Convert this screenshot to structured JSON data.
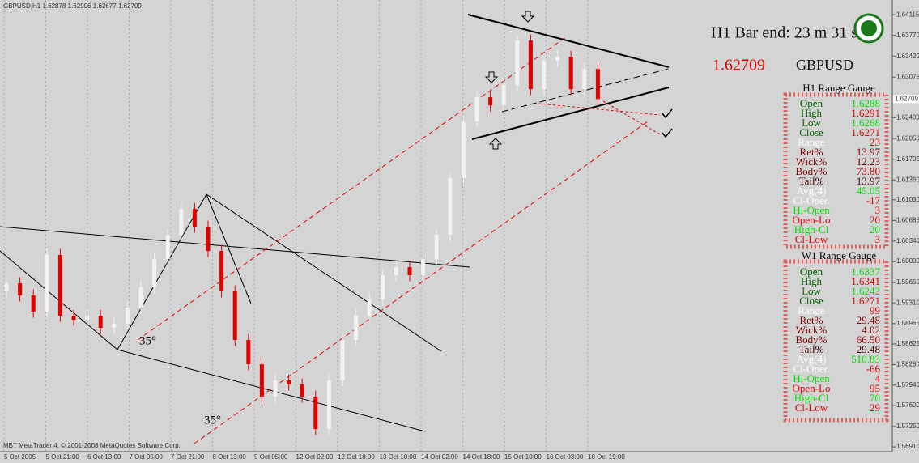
{
  "header": {
    "symbol": "GBPUSD,H1",
    "ohlc": [
      1.62878,
      1.62906,
      1.62677,
      1.62709
    ],
    "bar_end": "H1 Bar end: 23 m 31 s",
    "pair": "GBPUSD"
  },
  "footer": "MBT MetaTrader 4, © 2001-2008 MetaQuotes Software Corp.",
  "chart_data": {
    "type": "candlestick",
    "last_price": 1.62709,
    "ylim": [
      1.5683,
      1.6436
    ],
    "yticks": [
      1.64115,
      {
        "value": 1.6377,
        "label": "1.63770"
      },
      {
        "value": 1.6342,
        "label": "1.63420"
      },
      1.63075,
      {
        "value": 1.624,
        "label": "1.62400"
      },
      {
        "value": 1.6205,
        "label": "1.62050"
      },
      1.61705,
      {
        "value": 1.6136,
        "label": "1.61360"
      },
      {
        "value": 1.6103,
        "label": "1.61030"
      },
      1.60685,
      {
        "value": 1.6034,
        "label": "1.60340"
      },
      {
        "value": 1.6,
        "label": "1.60000"
      },
      {
        "value": 1.5965,
        "label": "1.59650"
      },
      {
        "value": 1.5931,
        "label": "1.59310"
      },
      1.58965,
      1.58625,
      {
        "value": 1.5828,
        "label": "1.58280"
      },
      {
        "value": 1.5794,
        "label": "1.57940"
      },
      {
        "value": 1.576,
        "label": "1.57600"
      },
      {
        "value": 1.5725,
        "label": "1.57250"
      },
      {
        "value": 1.5691,
        "label": "1.56910"
      }
    ],
    "x_labels": [
      "5 Oct 2005",
      "5 Oct 21:00",
      "6 Oct 13:00",
      "7 Oct 05:00",
      "7 Oct 21:00",
      "8 Oct 13:00",
      "9 Oct 05:00",
      "12 Oct 02:00",
      "12 Oct 18:00",
      "13 Oct 10:00",
      "14 Oct 02:00",
      "14 Oct 18:00",
      "15 Oct 10:00",
      "16 Oct 03:00",
      "18 Oct 19:00"
    ],
    "annotations": [
      "35°",
      "35°"
    ],
    "up_color": "#f2f2f2",
    "down_color": "#e00000",
    "open": [
      1.595,
      1.59637,
      1.59434,
      1.59164,
      1.60109,
      1.59097,
      1.59029,
      1.59097,
      1.58895,
      1.58962,
      1.59232,
      1.59569,
      1.60041,
      1.60446,
      1.60878,
      1.60581,
      1.60176,
      1.59502,
      1.58692,
      1.58288,
      1.57748,
      1.58018,
      1.5795,
      1.57748,
      1.57208,
      1.58018,
      1.58692,
      1.59097,
      1.59367,
      1.59771,
      1.59906,
      1.59771,
      1.60041,
      1.60446,
      1.6139,
      1.62335,
      1.62739,
      1.62604,
      1.62942,
      1.63684,
      1.62874,
      1.63346,
      1.63414,
      1.62874,
      1.63211
    ],
    "high": [
      1.59737,
      1.59737,
      1.59534,
      1.60209,
      1.60209,
      1.59197,
      1.59197,
      1.59197,
      1.59062,
      1.59332,
      1.59669,
      1.60141,
      1.60546,
      1.60978,
      1.60978,
      1.60681,
      1.60276,
      1.59602,
      1.58792,
      1.58388,
      1.58118,
      1.58118,
      1.5805,
      1.57848,
      1.58118,
      1.58792,
      1.59197,
      1.59467,
      1.59871,
      1.60006,
      1.60006,
      1.60141,
      1.60546,
      1.6149,
      1.62435,
      1.62839,
      1.62839,
      1.63042,
      1.63784,
      1.63784,
      1.63446,
      1.63514,
      1.63514,
      1.63311,
      1.63311
    ],
    "low": [
      1.594,
      1.59334,
      1.59064,
      1.59064,
      1.58997,
      1.58929,
      1.58929,
      1.58795,
      1.58795,
      1.58862,
      1.59132,
      1.59469,
      1.59941,
      1.60346,
      1.60481,
      1.60076,
      1.59402,
      1.58592,
      1.58188,
      1.57648,
      1.57648,
      1.5785,
      1.57648,
      1.57108,
      1.57108,
      1.57918,
      1.58592,
      1.58997,
      1.59267,
      1.59671,
      1.59671,
      1.59671,
      1.59941,
      1.60346,
      1.6129,
      1.62235,
      1.62504,
      1.62504,
      1.62842,
      1.62774,
      1.62774,
      1.63246,
      1.62774,
      1.62774,
      1.62609
    ],
    "close": [
      1.59637,
      1.59434,
      1.59164,
      1.60109,
      1.59097,
      1.59029,
      1.59097,
      1.58895,
      1.58962,
      1.59232,
      1.59569,
      1.60041,
      1.60446,
      1.60878,
      1.60581,
      1.60176,
      1.59502,
      1.58692,
      1.58288,
      1.57748,
      1.58018,
      1.5795,
      1.57748,
      1.57208,
      1.58018,
      1.58692,
      1.59097,
      1.59367,
      1.59771,
      1.59906,
      1.59771,
      1.60041,
      1.60446,
      1.6139,
      1.62335,
      1.62739,
      1.62604,
      1.62942,
      1.63684,
      1.62874,
      1.63346,
      1.63414,
      1.62874,
      1.63211,
      1.62709
    ]
  },
  "gauges": [
    {
      "title": "H1 Range Gauge",
      "rows": [
        {
          "label": "Open",
          "value": "1.6288",
          "colors": [
            "#006400",
            "#00e000"
          ]
        },
        {
          "label": "High",
          "value": "1.6291",
          "colors": [
            "#006400",
            "#e00000"
          ]
        },
        {
          "label": "Low",
          "value": "1.6268",
          "colors": [
            "#006400",
            "#00e000"
          ]
        },
        {
          "label": "Close",
          "value": "1.6271",
          "colors": [
            "#006400",
            "#e00000"
          ]
        },
        {
          "label": "Range",
          "value": "23",
          "colors": [
            "#ffffff",
            "#e00000"
          ]
        },
        {
          "label": "Ret%",
          "value": "13.97",
          "colors": [
            "#800000",
            "#800000"
          ]
        },
        {
          "label": "Wick%",
          "value": "12.23",
          "colors": [
            "#800000",
            "#800000"
          ]
        },
        {
          "label": "Body%",
          "value": "73.80",
          "colors": [
            "#800000",
            "#b00000"
          ]
        },
        {
          "label": "Tail%",
          "value": "13.97",
          "colors": [
            "#400000",
            "#400000"
          ]
        },
        {
          "label": "Avg(4)",
          "value": "45.05",
          "colors": [
            "#ffffff",
            "#00e000"
          ]
        },
        {
          "label": "Cl-Oper.",
          "value": "-17",
          "colors": [
            "#ffffff",
            "#e00000"
          ]
        },
        {
          "label": "Hi-Open",
          "value": "3",
          "colors": [
            "#00e000",
            "#e00000"
          ]
        },
        {
          "label": "Open-Lo",
          "value": "20",
          "colors": [
            "#e00000",
            "#e00000"
          ]
        },
        {
          "label": "High-Cl",
          "value": "20",
          "colors": [
            "#00e000",
            "#00e000"
          ]
        },
        {
          "label": "Cl-Low",
          "value": "3",
          "colors": [
            "#e00000",
            "#e00000"
          ]
        }
      ]
    },
    {
      "title": "W1 Range Gauge",
      "rows": [
        {
          "label": "Open",
          "value": "1.6337",
          "colors": [
            "#006400",
            "#00e000"
          ]
        },
        {
          "label": "High",
          "value": "1.6341",
          "colors": [
            "#006400",
            "#e00000"
          ]
        },
        {
          "label": "Low",
          "value": "1.6242",
          "colors": [
            "#006400",
            "#00e000"
          ]
        },
        {
          "label": "Close",
          "value": "1.6271",
          "colors": [
            "#006400",
            "#e00000"
          ]
        },
        {
          "label": "Range",
          "value": "99",
          "colors": [
            "#ffffff",
            "#e00000"
          ]
        },
        {
          "label": "Ret%",
          "value": "29.48",
          "colors": [
            "#800000",
            "#800000"
          ]
        },
        {
          "label": "Wick%",
          "value": "4.02",
          "colors": [
            "#800000",
            "#800000"
          ]
        },
        {
          "label": "Body%",
          "value": "66.50",
          "colors": [
            "#800000",
            "#b00000"
          ]
        },
        {
          "label": "Tail%",
          "value": "29.48",
          "colors": [
            "#400000",
            "#400000"
          ]
        },
        {
          "label": "Avg(4)",
          "value": "510.83",
          "colors": [
            "#ffffff",
            "#00e000"
          ]
        },
        {
          "label": "Cl-Oper.",
          "value": "-66",
          "colors": [
            "#ffffff",
            "#e00000"
          ]
        },
        {
          "label": "Hi-Open",
          "value": "4",
          "colors": [
            "#00e000",
            "#e00000"
          ]
        },
        {
          "label": "Open-Lo",
          "value": "95",
          "colors": [
            "#e00000",
            "#e00000"
          ]
        },
        {
          "label": "High-Cl",
          "value": "70",
          "colors": [
            "#00e000",
            "#00e000"
          ]
        },
        {
          "label": "Cl-Low",
          "value": "29",
          "colors": [
            "#e00000",
            "#e00000"
          ]
        }
      ]
    }
  ]
}
